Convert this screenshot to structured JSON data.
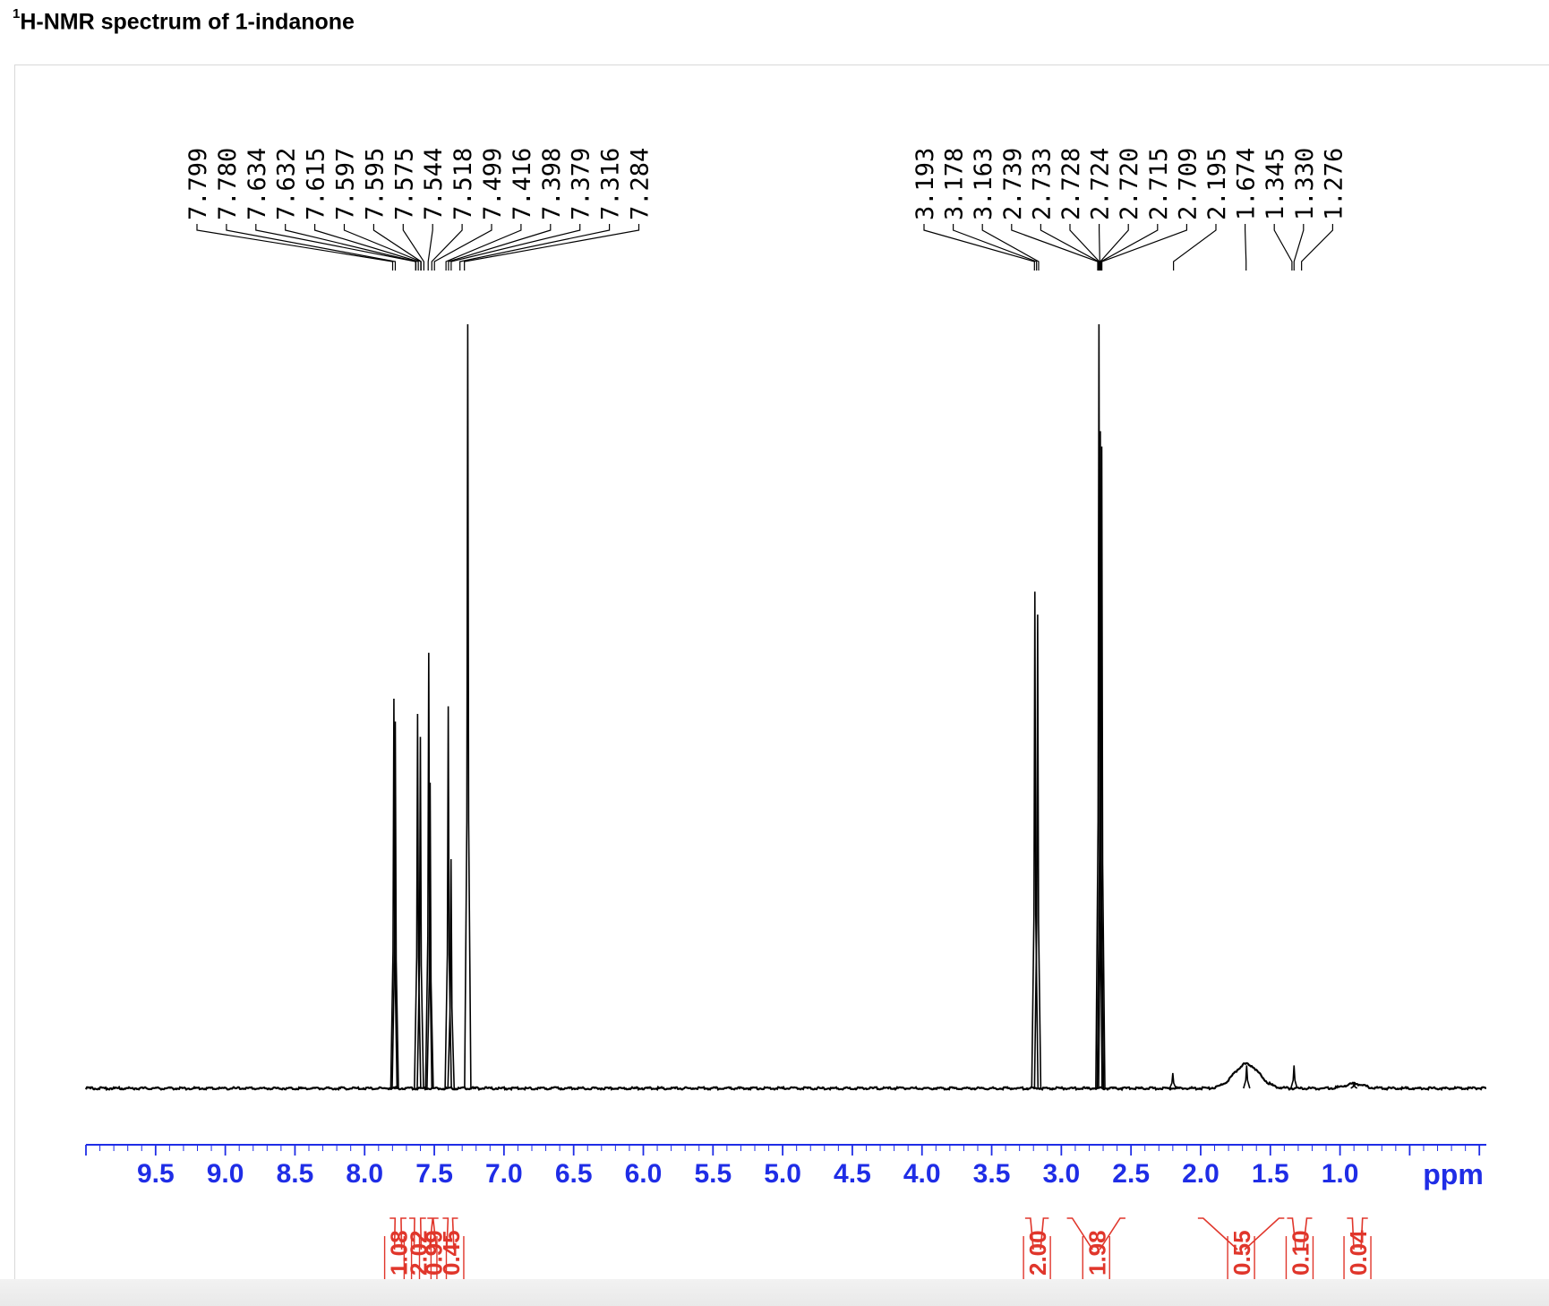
{
  "title": {
    "sup": "1",
    "text": "H-NMR spectrum of 1-indanone"
  },
  "chart_data": {
    "type": "line",
    "title": "1H-NMR spectrum of 1-indanone",
    "xlabel": "ppm",
    "x_reversed": true,
    "xlim": [
      10.0,
      -0.05
    ],
    "ylim": [
      0,
      1
    ],
    "grid": false,
    "line_color": "#000000",
    "axis_color": "#1f2de6",
    "integral_color": "#e0362b",
    "ticks": [
      "9.5",
      "9.0",
      "8.5",
      "8.0",
      "7.5",
      "7.0",
      "6.5",
      "6.0",
      "5.5",
      "5.0",
      "4.5",
      "4.0",
      "3.5",
      "3.0",
      "2.5",
      "2.0",
      "1.5",
      "1.0"
    ],
    "peak_labels_left": [
      "7.799",
      "7.780",
      "7.634",
      "7.632",
      "7.615",
      "7.597",
      "7.595",
      "7.575",
      "7.544",
      "7.518",
      "7.499",
      "7.416",
      "7.398",
      "7.379",
      "7.316",
      "7.284"
    ],
    "peak_labels_right": [
      "3.193",
      "3.178",
      "3.163",
      "2.739",
      "2.733",
      "2.728",
      "2.724",
      "2.720",
      "2.715",
      "2.709",
      "2.195",
      "1.674",
      "1.345",
      "1.330",
      "1.276"
    ],
    "peaks": [
      {
        "ppm": 7.79,
        "height": 0.51
      },
      {
        "ppm": 7.78,
        "height": 0.48
      },
      {
        "ppm": 7.62,
        "height": 0.49
      },
      {
        "ppm": 7.6,
        "height": 0.46
      },
      {
        "ppm": 7.54,
        "height": 0.57
      },
      {
        "ppm": 7.53,
        "height": 0.4
      },
      {
        "ppm": 7.4,
        "height": 0.5
      },
      {
        "ppm": 7.38,
        "height": 0.3
      },
      {
        "ppm": 7.26,
        "height": 1.0
      },
      {
        "ppm": 3.19,
        "height": 0.65
      },
      {
        "ppm": 3.17,
        "height": 0.62
      },
      {
        "ppm": 2.73,
        "height": 1.0
      },
      {
        "ppm": 2.72,
        "height": 0.86
      },
      {
        "ppm": 2.71,
        "height": 0.84
      },
      {
        "ppm": 2.2,
        "height": 0.02
      },
      {
        "ppm": 1.67,
        "height": 0.03
      },
      {
        "ppm": 1.33,
        "height": 0.03
      },
      {
        "ppm": 0.9,
        "height": 0.006
      }
    ],
    "integrals": [
      {
        "from": 7.82,
        "to": 7.7,
        "value": "1.08"
      },
      {
        "from": 7.68,
        "to": 7.56,
        "value": "2.02"
      },
      {
        "from": 7.55,
        "to": 7.47,
        "value": "0.99"
      },
      {
        "from": 7.44,
        "to": 7.33,
        "value": "0.45"
      },
      {
        "from": 3.26,
        "to": 3.09,
        "value": "2.00"
      },
      {
        "from": 2.96,
        "to": 2.54,
        "value": "1.98"
      },
      {
        "from": 2.02,
        "to": 1.4,
        "value": "0.55"
      },
      {
        "from": 1.38,
        "to": 1.2,
        "value": "0.10"
      },
      {
        "from": 0.95,
        "to": 0.8,
        "value": "0.04"
      }
    ]
  }
}
